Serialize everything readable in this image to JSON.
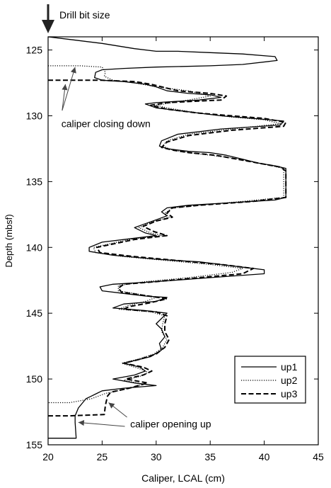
{
  "chart_data": {
    "type": "line",
    "xlabel": "Caliper, LCAL (cm)",
    "ylabel": "Depth (mbsf)",
    "xlim": [
      20,
      45
    ],
    "ylim": [
      124,
      155
    ],
    "y_inverted": true,
    "x_ticks": [
      20,
      25,
      30,
      35,
      40,
      45
    ],
    "y_ticks": [
      125,
      130,
      135,
      140,
      145,
      150,
      155
    ],
    "grid": false,
    "legend_position": "bottom-right",
    "annotations": {
      "drill_bit": {
        "text": "Drill bit size",
        "x": 20,
        "y": 123.0
      },
      "closing": {
        "text": "caliper closing down",
        "x": 20.7,
        "y": 130.6
      },
      "opening": {
        "text": "caliper opening up",
        "x": 27.6,
        "y": 153.4
      }
    },
    "series": [
      {
        "name": "up1",
        "style": "solid",
        "color": "#000000",
        "points": [
          [
            20,
            124.0
          ],
          [
            22,
            124.2
          ],
          [
            25,
            124.5
          ],
          [
            28,
            124.9
          ],
          [
            30,
            125.1
          ],
          [
            32,
            125.1
          ],
          [
            35,
            125.2
          ],
          [
            38,
            125.3
          ],
          [
            41,
            125.5
          ],
          [
            41.2,
            125.8
          ],
          [
            38,
            126.1
          ],
          [
            35,
            126.2
          ],
          [
            30,
            126.3
          ],
          [
            27,
            126.4
          ],
          [
            25,
            126.5
          ],
          [
            24.4,
            126.7
          ],
          [
            24.3,
            127.1
          ],
          [
            25,
            127.3
          ],
          [
            27,
            127.4
          ],
          [
            29,
            127.6
          ],
          [
            30,
            127.8
          ],
          [
            31,
            128.1
          ],
          [
            33,
            128.3
          ],
          [
            35,
            128.4
          ],
          [
            36,
            128.6
          ],
          [
            34,
            128.8
          ],
          [
            30,
            129.0
          ],
          [
            29,
            129.1
          ],
          [
            30,
            129.4
          ],
          [
            33,
            129.7
          ],
          [
            36,
            130.0
          ],
          [
            39,
            130.2
          ],
          [
            41.8,
            130.4
          ],
          [
            41.5,
            130.7
          ],
          [
            36,
            131.0
          ],
          [
            32,
            131.4
          ],
          [
            30.5,
            131.9
          ],
          [
            30.3,
            132.3
          ],
          [
            31,
            132.5
          ],
          [
            33,
            132.7
          ],
          [
            35,
            132.8
          ],
          [
            36.5,
            133.0
          ],
          [
            38,
            133.3
          ],
          [
            39.5,
            133.6
          ],
          [
            41,
            133.8
          ],
          [
            42,
            134.0
          ],
          [
            42,
            136.2
          ],
          [
            41,
            136.4
          ],
          [
            37,
            136.6
          ],
          [
            33,
            136.8
          ],
          [
            31,
            137.0
          ],
          [
            30.5,
            137.3
          ],
          [
            31,
            137.6
          ],
          [
            30,
            137.9
          ],
          [
            29,
            138.2
          ],
          [
            28,
            138.5
          ],
          [
            29,
            138.9
          ],
          [
            30,
            139.1
          ],
          [
            28,
            139.3
          ],
          [
            25,
            139.6
          ],
          [
            23.8,
            140.0
          ],
          [
            23.8,
            140.3
          ],
          [
            26,
            140.6
          ],
          [
            30,
            140.9
          ],
          [
            34,
            141.1
          ],
          [
            36,
            141.3
          ],
          [
            38,
            141.5
          ],
          [
            40,
            141.7
          ],
          [
            40,
            142.0
          ],
          [
            35,
            142.3
          ],
          [
            30,
            142.6
          ],
          [
            26,
            142.8
          ],
          [
            24.8,
            143.0
          ],
          [
            25,
            143.3
          ],
          [
            27,
            143.5
          ],
          [
            29,
            143.7
          ],
          [
            31,
            143.8
          ],
          [
            30,
            144.1
          ],
          [
            27,
            144.3
          ],
          [
            26,
            144.6
          ],
          [
            29,
            144.8
          ],
          [
            31,
            145.0
          ],
          [
            30.5,
            145.4
          ],
          [
            30,
            145.8
          ],
          [
            30.5,
            146.2
          ],
          [
            30.8,
            146.8
          ],
          [
            30.3,
            147.3
          ],
          [
            30.5,
            147.8
          ],
          [
            29.5,
            148.3
          ],
          [
            28,
            148.6
          ],
          [
            27,
            148.8
          ],
          [
            28.5,
            149.1
          ],
          [
            29,
            149.4
          ],
          [
            28,
            149.7
          ],
          [
            26,
            150.0
          ],
          [
            28,
            150.3
          ],
          [
            30,
            150.5
          ],
          [
            27,
            150.7
          ],
          [
            25,
            150.9
          ],
          [
            24.5,
            151.1
          ],
          [
            23.5,
            151.5
          ],
          [
            22.8,
            152.2
          ],
          [
            22.5,
            152.8
          ],
          [
            22.5,
            153.3
          ],
          [
            22.6,
            154.5
          ],
          [
            20,
            154.5
          ]
        ]
      },
      {
        "name": "up2",
        "style": "dotted",
        "color": "#000000",
        "points": [
          [
            20,
            126.2
          ],
          [
            23,
            126.2
          ],
          [
            25,
            126.3
          ],
          [
            25.3,
            126.7
          ],
          [
            25.2,
            127.0
          ],
          [
            26,
            127.3
          ],
          [
            28,
            127.5
          ],
          [
            30,
            127.8
          ],
          [
            33,
            128.1
          ],
          [
            35,
            128.5
          ],
          [
            33,
            128.8
          ],
          [
            30,
            129.2
          ],
          [
            31,
            129.4
          ],
          [
            34,
            129.8
          ],
          [
            37,
            130.1
          ],
          [
            40,
            130.3
          ],
          [
            41.5,
            130.6
          ],
          [
            37,
            131.0
          ],
          [
            33,
            131.4
          ],
          [
            31,
            131.9
          ],
          [
            30.6,
            132.3
          ],
          [
            31.5,
            132.6
          ],
          [
            33,
            132.8
          ],
          [
            35,
            133.0
          ],
          [
            37,
            133.2
          ],
          [
            39.5,
            133.6
          ],
          [
            41.8,
            134.0
          ],
          [
            41.8,
            136.2
          ],
          [
            38,
            136.5
          ],
          [
            34,
            136.8
          ],
          [
            31.5,
            137.0
          ],
          [
            30.8,
            137.4
          ],
          [
            31.2,
            137.7
          ],
          [
            29.5,
            138.1
          ],
          [
            28.4,
            138.5
          ],
          [
            29.5,
            138.9
          ],
          [
            30.5,
            139.1
          ],
          [
            27.5,
            139.4
          ],
          [
            24.2,
            140.0
          ],
          [
            24.4,
            140.4
          ],
          [
            27,
            140.7
          ],
          [
            31,
            141.0
          ],
          [
            35,
            141.3
          ],
          [
            38,
            141.6
          ],
          [
            37,
            141.9
          ],
          [
            33,
            142.3
          ],
          [
            29,
            142.6
          ],
          [
            26.5,
            142.9
          ],
          [
            26.5,
            143.3
          ],
          [
            28,
            143.5
          ],
          [
            30,
            143.8
          ],
          [
            29,
            144.1
          ],
          [
            27.5,
            144.4
          ],
          [
            26.5,
            144.7
          ],
          [
            29.5,
            144.9
          ],
          [
            30.8,
            145.2
          ],
          [
            30.6,
            145.8
          ],
          [
            30.5,
            146.4
          ],
          [
            31,
            147.0
          ],
          [
            30.6,
            147.6
          ],
          [
            29.8,
            148.1
          ],
          [
            28.3,
            148.5
          ],
          [
            26.8,
            148.8
          ],
          [
            28.4,
            149.2
          ],
          [
            29.3,
            149.5
          ],
          [
            28.5,
            149.8
          ],
          [
            27,
            150.1
          ],
          [
            28.8,
            150.4
          ],
          [
            27,
            150.8
          ],
          [
            25.3,
            151.1
          ],
          [
            24,
            151.5
          ],
          [
            22,
            151.8
          ],
          [
            20,
            151.8
          ]
        ]
      },
      {
        "name": "up3",
        "style": "dashed",
        "color": "#000000",
        "points": [
          [
            20,
            127.3
          ],
          [
            25,
            127.3
          ],
          [
            28,
            127.4
          ],
          [
            29.5,
            127.6
          ],
          [
            30.5,
            127.8
          ],
          [
            32,
            128.1
          ],
          [
            35,
            128.3
          ],
          [
            36.5,
            128.5
          ],
          [
            36,
            128.8
          ],
          [
            31,
            129.0
          ],
          [
            29.5,
            129.2
          ],
          [
            31,
            129.5
          ],
          [
            34,
            129.8
          ],
          [
            37,
            130.0
          ],
          [
            40,
            130.2
          ],
          [
            42,
            130.5
          ],
          [
            41.8,
            130.8
          ],
          [
            37,
            131.1
          ],
          [
            33,
            131.5
          ],
          [
            31,
            132.0
          ],
          [
            30.5,
            132.4
          ],
          [
            31.5,
            132.6
          ],
          [
            33,
            132.8
          ],
          [
            35.5,
            133.0
          ],
          [
            37.5,
            133.3
          ],
          [
            39.5,
            133.6
          ],
          [
            41.5,
            133.9
          ],
          [
            42,
            134.2
          ],
          [
            42,
            136.2
          ],
          [
            39,
            136.5
          ],
          [
            34,
            136.8
          ],
          [
            31.5,
            137.0
          ],
          [
            31,
            137.4
          ],
          [
            31.5,
            137.7
          ],
          [
            30,
            138.0
          ],
          [
            28.8,
            138.4
          ],
          [
            29.8,
            138.8
          ],
          [
            31,
            139.1
          ],
          [
            28,
            139.4
          ],
          [
            24.5,
            140.0
          ],
          [
            24.8,
            140.4
          ],
          [
            28,
            140.7
          ],
          [
            32,
            141.0
          ],
          [
            36,
            141.3
          ],
          [
            39,
            141.6
          ],
          [
            38,
            142.0
          ],
          [
            34,
            142.3
          ],
          [
            30,
            142.6
          ],
          [
            27,
            142.8
          ],
          [
            26.5,
            143.1
          ],
          [
            26.8,
            143.4
          ],
          [
            28.5,
            143.6
          ],
          [
            31,
            143.9
          ],
          [
            29.5,
            144.2
          ],
          [
            27.5,
            144.5
          ],
          [
            27,
            144.7
          ],
          [
            30,
            144.9
          ],
          [
            31,
            145.2
          ],
          [
            30.8,
            145.8
          ],
          [
            30.8,
            146.4
          ],
          [
            31.2,
            147.0
          ],
          [
            30.8,
            147.6
          ],
          [
            30,
            148.1
          ],
          [
            28.5,
            148.5
          ],
          [
            27,
            148.8
          ],
          [
            28.8,
            149.1
          ],
          [
            29.6,
            149.4
          ],
          [
            28.8,
            149.7
          ],
          [
            27.2,
            150.0
          ],
          [
            29.2,
            150.3
          ],
          [
            27.5,
            150.7
          ],
          [
            25.8,
            151.0
          ],
          [
            25.5,
            151.3
          ],
          [
            25.3,
            152.0
          ],
          [
            25.2,
            152.7
          ],
          [
            22,
            152.8
          ],
          [
            20,
            152.8
          ]
        ]
      }
    ]
  }
}
